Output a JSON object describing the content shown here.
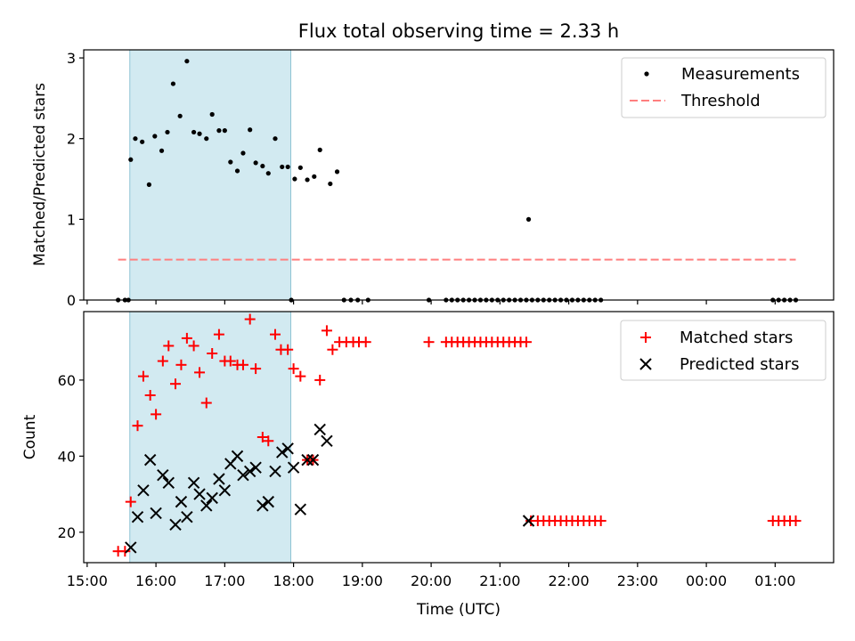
{
  "figure": {
    "title": "Flux total observing time = 2.33 h",
    "xlabel": "Time (UTC)",
    "xticks": [
      {
        "t": 15.0,
        "label": "15:00"
      },
      {
        "t": 16.0,
        "label": "16:00"
      },
      {
        "t": 17.0,
        "label": "17:00"
      },
      {
        "t": 18.0,
        "label": "18:00"
      },
      {
        "t": 19.0,
        "label": "19:00"
      },
      {
        "t": 20.0,
        "label": "20:00"
      },
      {
        "t": 21.0,
        "label": "21:00"
      },
      {
        "t": 22.0,
        "label": "22:00"
      },
      {
        "t": 23.0,
        "label": "23:00"
      },
      {
        "t": 24.0,
        "label": "00:00"
      },
      {
        "t": 25.0,
        "label": "01:00"
      }
    ],
    "xlim_hours": [
      14.95,
      25.85
    ],
    "shaded_interval_hours": [
      15.62,
      17.96
    ],
    "shade_color": "#add8e6"
  },
  "chart_data": [
    {
      "type": "scatter",
      "ylabel": "Matched/Predicted stars",
      "ylim": [
        0,
        3.1
      ],
      "yticks": [
        0,
        1,
        2,
        3
      ],
      "legend_placement": "top-right",
      "series": [
        {
          "name": "Measurements",
          "color": "#000000",
          "marker": "dot",
          "x": [
            "15:27",
            "15:33",
            "15:36",
            "15:42",
            "15:48",
            "15:54",
            "15:59",
            "16:05",
            "16:10",
            "16:15",
            "16:21",
            "16:27",
            "16:33",
            "16:38",
            "16:44",
            "16:49",
            "16:55",
            "17:00",
            "17:05",
            "17:11",
            "17:16",
            "17:22",
            "17:27",
            "17:33",
            "17:38",
            "17:44",
            "17:50",
            "17:55",
            "18:01",
            "18:06",
            "18:12",
            "18:18",
            "18:23",
            "18:32",
            "18:38",
            "18:44",
            "18:50",
            "18:56",
            "19:05",
            "19:58",
            "20:13",
            "20:18",
            "20:23",
            "20:28",
            "20:33",
            "20:38",
            "20:43",
            "20:48",
            "20:53",
            "20:58",
            "21:03",
            "21:08",
            "21:13",
            "21:18",
            "21:23",
            "21:28",
            "21:33",
            "21:38",
            "21:43",
            "21:48",
            "21:53",
            "21:58",
            "22:03",
            "22:08",
            "22:13",
            "22:18",
            "22:23",
            "22:28",
            "24:58",
            "25:03",
            "25:08",
            "25:13",
            "25:18"
          ],
          "y": [
            0,
            0,
            0,
            2.0,
            1.96,
            1.43,
            2.03,
            1.85,
            2.08,
            2.68,
            2.28,
            2.96,
            2.08,
            2.06,
            2.0,
            2.3,
            2.1,
            2.1,
            1.71,
            1.6,
            1.82,
            2.11,
            1.7,
            1.66,
            1.57,
            2.0,
            1.65,
            1.65,
            1.5,
            1.64,
            1.49,
            1.53,
            1.86,
            1.44,
            1.59,
            0,
            0,
            0,
            0,
            0,
            0,
            0,
            0,
            0,
            0,
            0,
            0,
            0,
            0,
            0,
            0,
            0,
            0,
            0,
            0,
            0,
            0,
            0,
            0,
            0,
            0,
            0,
            0,
            0,
            0,
            0,
            0,
            0,
            0,
            0,
            0,
            0,
            0
          ],
          "extra_points": [
            {
              "x": "15:38",
              "y": 1.74
            },
            {
              "x": "21:25",
              "y": 1.0
            },
            {
              "x": "17:58",
              "y": 0
            }
          ]
        },
        {
          "name": "Threshold",
          "color": "#ff7f7f",
          "style": "dashed",
          "x": [
            "15:27",
            "25:18"
          ],
          "y": [
            0.5,
            0.5
          ]
        }
      ]
    },
    {
      "type": "scatter",
      "ylabel": "Count",
      "ylim": [
        12,
        78
      ],
      "yticks": [
        20,
        40,
        60
      ],
      "legend_placement": "top-right",
      "series": [
        {
          "name": "Matched stars",
          "color": "#ff0000",
          "marker": "plus",
          "x": [
            "15:27",
            "15:33",
            "15:38",
            "15:44",
            "15:49",
            "15:55",
            "16:00",
            "16:06",
            "16:11",
            "16:17",
            "16:22",
            "16:27",
            "16:33",
            "16:38",
            "16:44",
            "16:49",
            "16:55",
            "17:00",
            "17:05",
            "17:11",
            "17:16",
            "17:22",
            "17:27",
            "17:33",
            "17:38",
            "17:44",
            "17:49",
            "17:55",
            "18:00",
            "18:06",
            "18:12",
            "18:17",
            "18:23",
            "18:29",
            "18:34",
            "18:40",
            "18:46",
            "18:52",
            "18:57",
            "19:03",
            "19:58",
            "20:13",
            "20:18",
            "20:23",
            "20:28",
            "20:33",
            "20:38",
            "20:43",
            "20:48",
            "20:53",
            "20:58",
            "21:03",
            "21:08",
            "21:13",
            "21:18",
            "21:23",
            "21:27",
            "21:33",
            "21:38",
            "21:43",
            "21:48",
            "21:53",
            "21:58",
            "22:03",
            "22:08",
            "22:13",
            "22:18",
            "22:23",
            "22:28",
            "24:58",
            "25:03",
            "25:08",
            "25:13",
            "25:18"
          ],
          "y": [
            15,
            15,
            28,
            48,
            61,
            56,
            51,
            65,
            69,
            59,
            64,
            71,
            69,
            62,
            54,
            67,
            72,
            65,
            65,
            64,
            64,
            76,
            63,
            45,
            44,
            72,
            68,
            68,
            63,
            61,
            39,
            39,
            60,
            73,
            68,
            70,
            70,
            70,
            70,
            70,
            70,
            70,
            70,
            70,
            70,
            70,
            70,
            70,
            70,
            70,
            70,
            70,
            70,
            70,
            70,
            70,
            23,
            23,
            23,
            23,
            23,
            23,
            23,
            23,
            23,
            23,
            23,
            23,
            23,
            23,
            23,
            23,
            23,
            23
          ]
        },
        {
          "name": "Predicted stars",
          "color": "#000000",
          "marker": "x",
          "x": [
            "15:38",
            "15:44",
            "15:49",
            "15:55",
            "16:00",
            "16:06",
            "16:11",
            "16:17",
            "16:22",
            "16:27",
            "16:33",
            "16:38",
            "16:44",
            "16:49",
            "16:55",
            "17:00",
            "17:05",
            "17:11",
            "17:16",
            "17:22",
            "17:27",
            "17:33",
            "17:38",
            "17:44",
            "17:50",
            "17:55",
            "18:00",
            "18:06",
            "18:12",
            "18:17",
            "18:23",
            "18:29",
            "21:25"
          ],
          "y": [
            16,
            24,
            31,
            39,
            25,
            35,
            33,
            22,
            28,
            24,
            33,
            30,
            27,
            29,
            34,
            31,
            38,
            40,
            35,
            36,
            37,
            27,
            28,
            36,
            41,
            42,
            37,
            26,
            39,
            39,
            47,
            44,
            23
          ]
        }
      ]
    }
  ]
}
